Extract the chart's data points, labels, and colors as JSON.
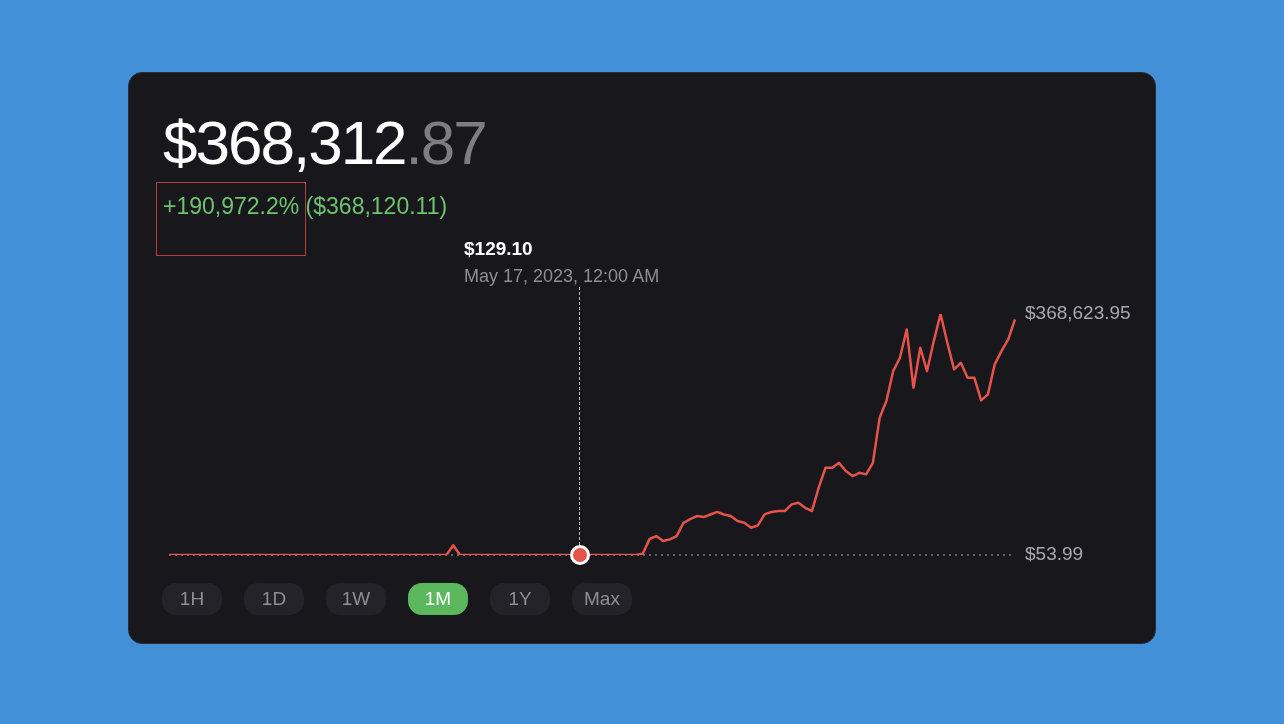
{
  "chart_data": {
    "type": "line",
    "title": "$368,312.87",
    "subtitle": "+190,972.2% ($368,120.11)",
    "categories": [
      null,
      null,
      null,
      null,
      null,
      null,
      null,
      null,
      null,
      null,
      null,
      null,
      null,
      null,
      null,
      null,
      null,
      null,
      null,
      null,
      null,
      null,
      null,
      null,
      null,
      null,
      null,
      null,
      null,
      null,
      null,
      null,
      null,
      null,
      null,
      null,
      null,
      null,
      null,
      null,
      null,
      null,
      null,
      null,
      null,
      null,
      null,
      null,
      null,
      null,
      null,
      null,
      null,
      null,
      null,
      null,
      null,
      null,
      null,
      null,
      null,
      null,
      null,
      null,
      null,
      null,
      null,
      null,
      null,
      null,
      null,
      null,
      null,
      null,
      null,
      null,
      null,
      null,
      null,
      null,
      null,
      null,
      null,
      null,
      null,
      null,
      null,
      null,
      null,
      null,
      null,
      null,
      null,
      null,
      null,
      null,
      null,
      null,
      null,
      null,
      null,
      null,
      null,
      null,
      null,
      null,
      null,
      null,
      null,
      null,
      null,
      null,
      null,
      null,
      null,
      null,
      null,
      null,
      null,
      null,
      null,
      null,
      null,
      null,
      null,
      null
    ],
    "ylim": [
      53.99,
      368623.95
    ],
    "yticks": [
      {
        "value": 53.99,
        "label": "$53.99"
      },
      {
        "value": 368623.95,
        "label": "$368,623.95"
      }
    ],
    "series": [
      {
        "color": "#e5534b",
        "values": [
          53.99,
          53.99,
          53.99,
          53.99,
          53.99,
          53.99,
          53.99,
          53.99,
          53.99,
          53.99,
          53.99,
          53.99,
          53.99,
          53.99,
          53.99,
          53.99,
          53.99,
          53.99,
          53.99,
          53.99,
          53.99,
          53.99,
          53.99,
          53.99,
          53.99,
          53.99,
          53.99,
          53.99,
          53.99,
          53.99,
          53.99,
          53.99,
          53.99,
          53.99,
          53.99,
          53.99,
          53.99,
          53.99,
          53.99,
          53.99,
          53.99,
          53.99,
          15000,
          53.99,
          53.99,
          53.99,
          53.99,
          53.99,
          53.99,
          53.99,
          53.99,
          53.99,
          53.99,
          53.99,
          53.99,
          53.99,
          53.99,
          53.99,
          53.99,
          53.99,
          53.99,
          53.99,
          53.99,
          53.99,
          129.1,
          53.99,
          53.99,
          53.99,
          53.99,
          53.99,
          2000,
          24500,
          29000,
          21400,
          24000,
          29000,
          49000,
          55000,
          59600,
          58000,
          62000,
          66000,
          62000,
          59600,
          52000,
          49400,
          41800,
          45400,
          62200,
          65800,
          67300,
          67300,
          77500,
          80000,
          72300,
          67300,
          103000,
          133500,
          133500,
          141000,
          128400,
          120800,
          125800,
          123400,
          141000,
          210000,
          235500,
          281300,
          301700,
          345000,
          255800,
          317000,
          281300,
          327200,
          368623.95,
          324600,
          284000,
          294000,
          271100,
          271100,
          236500,
          245700,
          291600,
          311900,
          329800,
          360400
        ]
      }
    ],
    "tick_labels": "y",
    "marker": "none",
    "line_style": "solid",
    "ref_lines": [
      {
        "axis": "y",
        "value": 53.99,
        "color": "#7a7a80",
        "line_style": "dotted"
      }
    ],
    "annotations": [
      "$129.10",
      "May 17, 2023, 12:00 AM",
      "1H",
      "1D",
      "1W",
      "1M",
      "1Y",
      "Max"
    ]
  }
}
